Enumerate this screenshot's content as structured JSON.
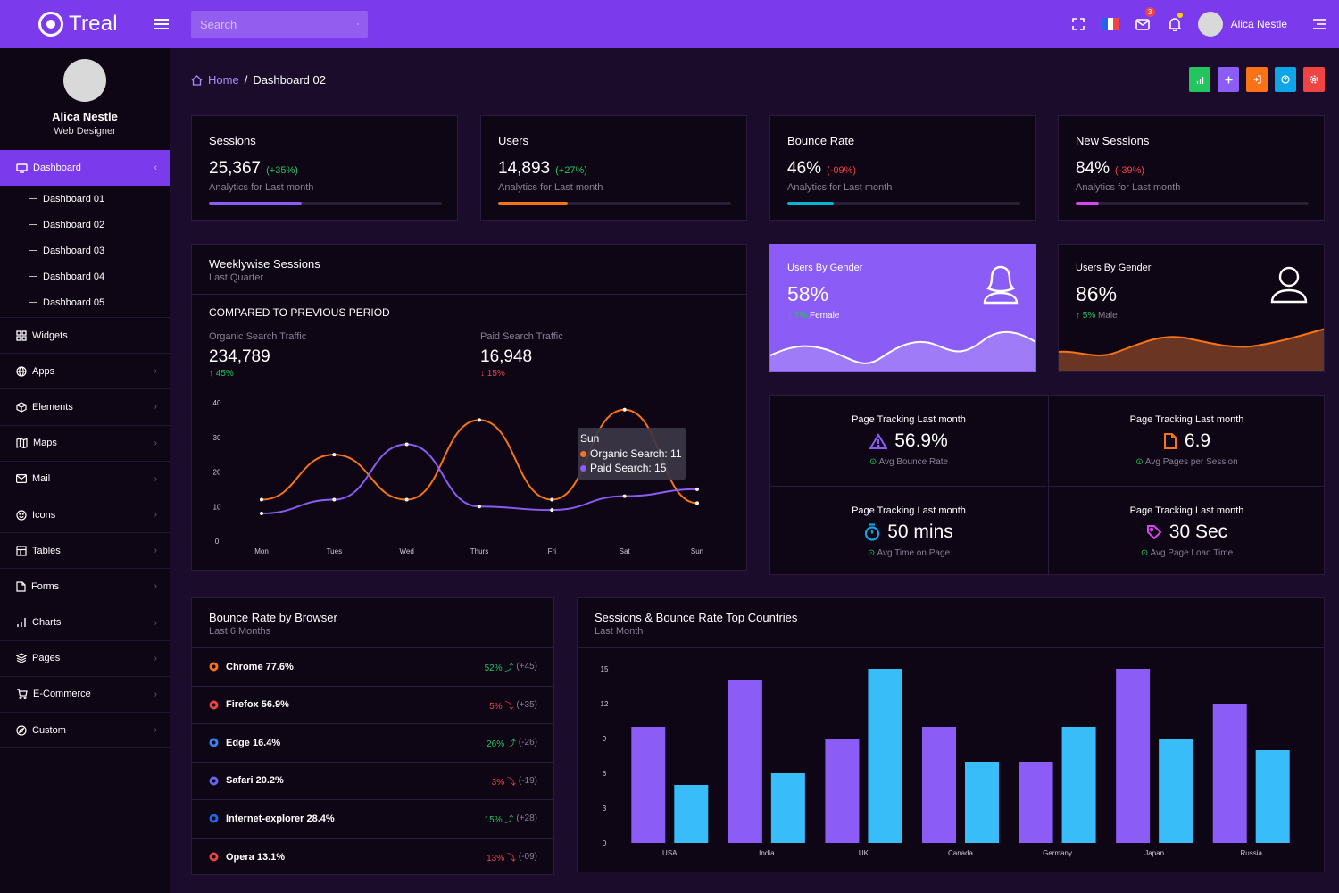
{
  "brand": {
    "name": "Treal"
  },
  "search": {
    "placeholder": "Search"
  },
  "top": {
    "mail_badge": "3",
    "user": "Alica Nestle"
  },
  "profile": {
    "name": "Alica Nestle",
    "role": "Web Designer"
  },
  "nav": {
    "dashboard": "Dashboard",
    "sub": [
      "Dashboard 01",
      "Dashboard 02",
      "Dashboard 03",
      "Dashboard 04",
      "Dashboard 05"
    ],
    "items": [
      "Widgets",
      "Apps",
      "Elements",
      "Maps",
      "Mail",
      "Icons",
      "Tables",
      "Forms",
      "Charts",
      "Pages",
      "E-Commerce",
      "Custom"
    ]
  },
  "breadcrumb": {
    "home": "Home",
    "sep": "/",
    "current": "Dashboard 02"
  },
  "stats": [
    {
      "title": "Sessions",
      "value": "25,367",
      "change": "(+35%)",
      "desc": "Analytics for Last month",
      "progress": 0.4,
      "color": "#8b5cf6",
      "chg_color": "#22c55e"
    },
    {
      "title": "Users",
      "value": "14,893",
      "change": "(+27%)",
      "desc": "Analytics for Last month",
      "progress": 0.3,
      "color": "#f97316",
      "chg_color": "#22c55e"
    },
    {
      "title": "Bounce Rate",
      "value": "46%",
      "change": "(-09%)",
      "desc": "Analytics for Last month",
      "progress": 0.2,
      "color": "#06b6d4",
      "chg_color": "#ef4444"
    },
    {
      "title": "New Sessions",
      "value": "84%",
      "change": "(-39%)",
      "desc": "Analytics for Last month",
      "progress": 0.1,
      "color": "#d946ef",
      "chg_color": "#ef4444"
    }
  ],
  "weekly": {
    "title": "Weeklywise Sessions",
    "subtitle": "Last Quarter",
    "compared": "COMPARED TO PREVIOUS PERIOD",
    "organic_label": "Organic Search Traffic",
    "organic_value": "234,789",
    "organic_change": "45%",
    "paid_label": "Paid Search Traffic",
    "paid_value": "16,948",
    "paid_change": "15%",
    "tooltip": {
      "day": "Sun",
      "organic": "Organic Search: 11",
      "paid": "Paid Search: 15"
    }
  },
  "gender": [
    {
      "label": "Users By Gender",
      "value": "58%",
      "change": "7%",
      "sex": "Female"
    },
    {
      "label": "Users By Gender",
      "value": "86%",
      "change": "5%",
      "sex": "Male"
    }
  ],
  "tracking": [
    {
      "title": "Page Tracking Last month",
      "value": "56.9%",
      "sub": "Avg Bounce Rate"
    },
    {
      "title": "Page Tracking Last month",
      "value": "6.9",
      "sub": "Avg Pages per Session"
    },
    {
      "title": "Page Tracking Last month",
      "value": "50 mins",
      "sub": "Avg Time on Page"
    },
    {
      "title": "Page Tracking Last month",
      "value": "30 Sec",
      "sub": "Avg Page Load Time"
    }
  ],
  "browsers": {
    "title": "Bounce Rate by Browser",
    "subtitle": "Last 6 Months",
    "rows": [
      {
        "name": "Chrome 77.6%",
        "pct": "52%",
        "chg": "(+45)",
        "up": true,
        "color": "#f97316"
      },
      {
        "name": "Firefox 56.9%",
        "pct": "5%",
        "chg": "(+35)",
        "up": false,
        "color": "#ef4444"
      },
      {
        "name": "Edge 16.4%",
        "pct": "26%",
        "chg": "(-26)",
        "up": true,
        "color": "#3b82f6"
      },
      {
        "name": "Safari 20.2%",
        "pct": "3%",
        "chg": "(-19)",
        "up": false,
        "color": "#6366f1"
      },
      {
        "name": "Internet-explorer 28.4%",
        "pct": "15%",
        "chg": "(+28)",
        "up": true,
        "color": "#2563eb"
      },
      {
        "name": "Opera 13.1%",
        "pct": "13%",
        "chg": "(-09)",
        "up": false,
        "color": "#ef4444"
      }
    ]
  },
  "countries_card": {
    "title": "Sessions & Bounce Rate Top Countries",
    "subtitle": "Last Month"
  },
  "chart_data": [
    {
      "type": "line",
      "title": "Weeklywise Sessions",
      "categories": [
        "Mon",
        "Tues",
        "Wed",
        "Thurs",
        "Fri",
        "Sat",
        "Sun"
      ],
      "series": [
        {
          "name": "Organic Search",
          "values": [
            12,
            25,
            12,
            35,
            12,
            38,
            11
          ],
          "color": "#f97316"
        },
        {
          "name": "Paid Search",
          "values": [
            8,
            12,
            28,
            10,
            9,
            13,
            15
          ],
          "color": "#8b5cf6"
        }
      ],
      "yticks": [
        0,
        10,
        20,
        30,
        40
      ],
      "ylim": [
        0,
        40
      ]
    },
    {
      "type": "bar",
      "title": "Sessions & Bounce Rate Top Countries",
      "categories": [
        "USA",
        "India",
        "UK",
        "Canada",
        "Germany",
        "Japan",
        "Russia"
      ],
      "series": [
        {
          "name": "Sessions",
          "values": [
            10,
            14,
            9,
            10,
            7,
            15,
            12
          ],
          "color": "#8b5cf6"
        },
        {
          "name": "Bounce Rate",
          "values": [
            5,
            6,
            15,
            7,
            10,
            9,
            8
          ],
          "color": "#38bdf8"
        }
      ],
      "yticks": [
        0,
        3,
        6,
        9,
        12,
        15
      ],
      "ylim": [
        0,
        15
      ]
    }
  ]
}
